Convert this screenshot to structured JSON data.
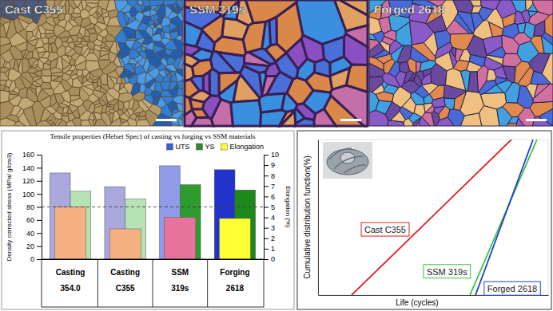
{
  "panels": [
    {
      "label": "Cast C355"
    },
    {
      "label": "SSM 319s"
    },
    {
      "label": "Forged 2618"
    }
  ],
  "chart_data": [
    {
      "type": "bar",
      "title": "Tensile properties (Helset Spec) of casting vs forging vs SSM materials",
      "categories": [
        [
          "Casting",
          "354.0"
        ],
        [
          "Casting",
          "C355"
        ],
        [
          "SSM",
          "319s"
        ],
        [
          "Forging",
          "2618"
        ]
      ],
      "series": [
        {
          "name": "UTS",
          "color": "#3a5fd9",
          "colors": [
            "#a9a9dd",
            "#a9a9dd",
            "#8f9ae8",
            "#2233cc"
          ],
          "values": [
            132,
            111,
            143,
            137
          ]
        },
        {
          "name": "YS",
          "color": "#2e8b2e",
          "colors": [
            "#b6e3b6",
            "#b6e3b6",
            "#2e9b2e",
            "#1b8a1b"
          ],
          "values": [
            104,
            92,
            114,
            106
          ]
        },
        {
          "name": "Elongation",
          "color": "#ffff33",
          "colors": [
            "#f6b183",
            "#f6b183",
            "#e8739a",
            "#ffff33"
          ],
          "values": [
            5,
            2.9,
            4,
            3.9
          ],
          "axis": "y2"
        }
      ],
      "ylabel": "Density corrected stress (MPa/ g/cm3)",
      "y2label": "Elongation (%)",
      "ylim": [
        0,
        160
      ],
      "yticks": [
        0,
        20,
        40,
        60,
        80,
        100,
        120,
        140,
        160
      ],
      "y2lim": [
        0,
        10
      ],
      "y2ticks": [
        0,
        1,
        2,
        3,
        4,
        5,
        6,
        7,
        8,
        9,
        10
      ],
      "reference_line": 80,
      "legend": "upper right"
    },
    {
      "type": "line",
      "xlabel": "Life (cycles)",
      "ylabel": "Cumulative distribution function(%)",
      "xlim": [
        0,
        100
      ],
      "ylim": [
        0,
        100
      ],
      "tick_labels": false,
      "series": [
        {
          "name": "Cast C355",
          "color": "#e02020",
          "x": [
            14.6,
            84
          ],
          "values": [
            0,
            100
          ]
        },
        {
          "name": "SSM 319s",
          "color": "#3cc43c",
          "x": [
            66,
            95.1
          ],
          "values": [
            0,
            100
          ]
        },
        {
          "name": "Forged 2618",
          "color": "#1f3fcf",
          "x": [
            68.4,
            93.4
          ],
          "values": [
            0,
            100
          ]
        }
      ]
    }
  ]
}
